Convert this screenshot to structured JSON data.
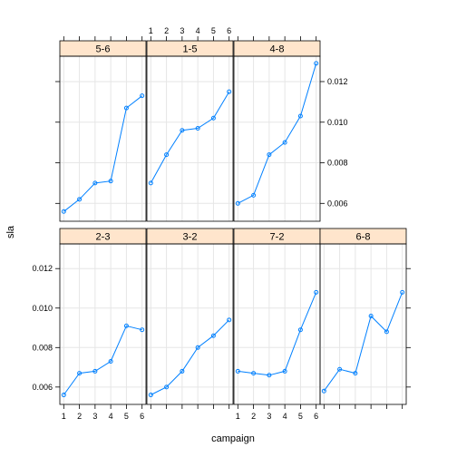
{
  "chart_data": {
    "type": "line",
    "layout": "trellis",
    "xlabel": "campaign",
    "ylabel": "sla",
    "x_ticks": [
      1,
      2,
      3,
      4,
      5,
      6
    ],
    "xlim": [
      0.75,
      6.25
    ],
    "y_ticks": [
      0.006,
      0.008,
      0.01,
      0.012
    ],
    "y_tick_labels": [
      "0.006",
      "0.008",
      "0.010",
      "0.012"
    ],
    "ylim": [
      0.00512,
      0.01325
    ],
    "grid": true,
    "series_color": "#0080ff",
    "strip_color": "#ffe5cc",
    "panels": [
      {
        "label": "2-3",
        "row": 0,
        "col": 0,
        "x": [
          1,
          2,
          3,
          4,
          5,
          6
        ],
        "y": [
          0.0056,
          0.0067,
          0.0068,
          0.0073,
          0.0091,
          0.0089
        ]
      },
      {
        "label": "3-2",
        "row": 0,
        "col": 1,
        "x": [
          1,
          2,
          3,
          4,
          5,
          6
        ],
        "y": [
          0.0056,
          0.006,
          0.0068,
          0.008,
          0.0086,
          0.0094
        ]
      },
      {
        "label": "7-2",
        "row": 0,
        "col": 2,
        "x": [
          1,
          2,
          3,
          4,
          5,
          6
        ],
        "y": [
          0.0068,
          0.0067,
          0.0066,
          0.0068,
          0.0089,
          0.0108
        ]
      },
      {
        "label": "6-8",
        "row": 0,
        "col": 3,
        "x": [
          1,
          2,
          3,
          4,
          5,
          6
        ],
        "y": [
          0.0058,
          0.0069,
          0.0067,
          0.0096,
          0.0088,
          0.0108
        ]
      },
      {
        "label": "5-6",
        "row": 1,
        "col": 0,
        "x": [
          1,
          2,
          3,
          4,
          5,
          6
        ],
        "y": [
          0.0056,
          0.0062,
          0.007,
          0.0071,
          0.0107,
          0.0113
        ]
      },
      {
        "label": "1-5",
        "row": 1,
        "col": 1,
        "x": [
          1,
          2,
          3,
          4,
          5,
          6
        ],
        "y": [
          0.007,
          0.0084,
          0.0096,
          0.0097,
          0.0102,
          0.0115
        ]
      },
      {
        "label": "4-8",
        "row": 1,
        "col": 2,
        "x": [
          1,
          2,
          3,
          4,
          5,
          6
        ],
        "y": [
          0.006,
          0.0064,
          0.0084,
          0.009,
          0.0103,
          0.0129
        ]
      }
    ]
  }
}
